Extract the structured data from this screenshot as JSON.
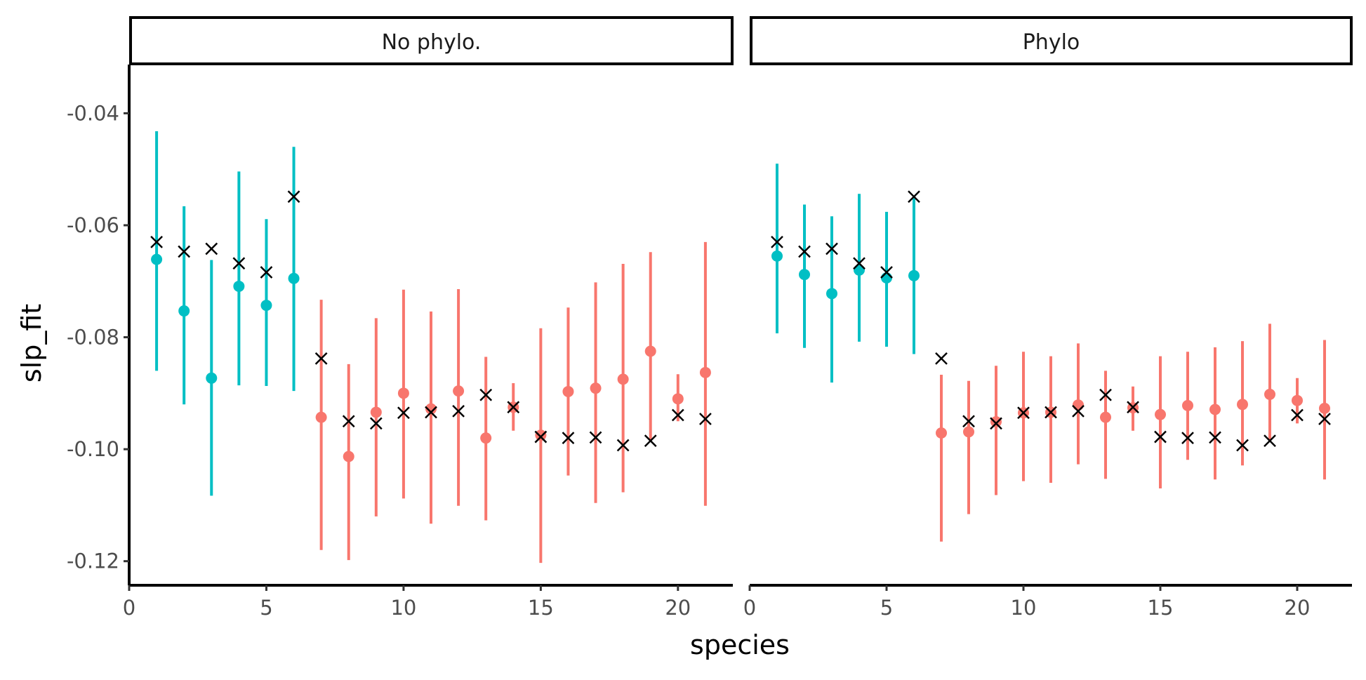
{
  "chart_data": {
    "type": "scatter",
    "xlabel": "species",
    "ylabel": "slp_fit",
    "xlim": [
      0,
      22
    ],
    "ylim": [
      -0.1243,
      -0.0313
    ],
    "x_ticks": [
      0,
      5,
      10,
      15,
      20
    ],
    "y_ticks": [
      -0.04,
      -0.06,
      -0.08,
      -0.1,
      -0.12
    ],
    "x_tick_labels": [
      "0",
      "5",
      "10",
      "15",
      "20"
    ],
    "y_tick_labels": [
      "-0.04",
      "-0.06",
      "-0.08",
      "-0.10",
      "-0.12"
    ],
    "grid": false,
    "legend": "none",
    "colors": {
      "teal": "#00BFC4",
      "salmon": "#F8766D",
      "cross": "#000000"
    },
    "panels": [
      {
        "title": "No phylo.",
        "estimates": [
          {
            "x": 1,
            "y": -0.0661,
            "lo": -0.086,
            "hi": -0.0432,
            "color": "teal"
          },
          {
            "x": 2,
            "y": -0.0753,
            "lo": -0.092,
            "hi": -0.0566,
            "color": "teal"
          },
          {
            "x": 3,
            "y": -0.0873,
            "lo": -0.1083,
            "hi": -0.0662,
            "color": "teal"
          },
          {
            "x": 4,
            "y": -0.0709,
            "lo": -0.0886,
            "hi": -0.0504,
            "color": "teal"
          },
          {
            "x": 5,
            "y": -0.0743,
            "lo": -0.0887,
            "hi": -0.0589,
            "color": "teal"
          },
          {
            "x": 6,
            "y": -0.0695,
            "lo": -0.0896,
            "hi": -0.046,
            "color": "teal"
          },
          {
            "x": 7,
            "y": -0.0943,
            "lo": -0.118,
            "hi": -0.0733,
            "color": "salmon"
          },
          {
            "x": 8,
            "y": -0.1013,
            "lo": -0.1198,
            "hi": -0.0848,
            "color": "salmon"
          },
          {
            "x": 9,
            "y": -0.0934,
            "lo": -0.112,
            "hi": -0.0766,
            "color": "salmon"
          },
          {
            "x": 10,
            "y": -0.09,
            "lo": -0.1088,
            "hi": -0.0715,
            "color": "salmon"
          },
          {
            "x": 11,
            "y": -0.0928,
            "lo": -0.1133,
            "hi": -0.0754,
            "color": "salmon"
          },
          {
            "x": 12,
            "y": -0.0896,
            "lo": -0.1101,
            "hi": -0.0714,
            "color": "salmon"
          },
          {
            "x": 13,
            "y": -0.098,
            "lo": -0.1127,
            "hi": -0.0835,
            "color": "salmon"
          },
          {
            "x": 14,
            "y": -0.0925,
            "lo": -0.0967,
            "hi": -0.0882,
            "color": "salmon"
          },
          {
            "x": 15,
            "y": -0.0975,
            "lo": -0.1203,
            "hi": -0.0784,
            "color": "salmon"
          },
          {
            "x": 16,
            "y": -0.0897,
            "lo": -0.1047,
            "hi": -0.0747,
            "color": "salmon"
          },
          {
            "x": 17,
            "y": -0.0891,
            "lo": -0.1096,
            "hi": -0.0702,
            "color": "salmon"
          },
          {
            "x": 18,
            "y": -0.0875,
            "lo": -0.1077,
            "hi": -0.0669,
            "color": "salmon"
          },
          {
            "x": 19,
            "y": -0.0825,
            "lo": -0.0985,
            "hi": -0.0648,
            "color": "salmon"
          },
          {
            "x": 20,
            "y": -0.091,
            "lo": -0.095,
            "hi": -0.0866,
            "color": "salmon"
          },
          {
            "x": 21,
            "y": -0.0863,
            "lo": -0.1101,
            "hi": -0.063,
            "color": "salmon"
          }
        ],
        "true_values": [
          {
            "x": 1,
            "y": -0.063
          },
          {
            "x": 2,
            "y": -0.0647
          },
          {
            "x": 3,
            "y": -0.0642
          },
          {
            "x": 4,
            "y": -0.0668
          },
          {
            "x": 5,
            "y": -0.0684
          },
          {
            "x": 6,
            "y": -0.0549
          },
          {
            "x": 7,
            "y": -0.0838
          },
          {
            "x": 8,
            "y": -0.095
          },
          {
            "x": 9,
            "y": -0.0954
          },
          {
            "x": 10,
            "y": -0.0935
          },
          {
            "x": 11,
            "y": -0.0934
          },
          {
            "x": 12,
            "y": -0.0932
          },
          {
            "x": 13,
            "y": -0.0903
          },
          {
            "x": 14,
            "y": -0.0925
          },
          {
            "x": 15,
            "y": -0.0978
          },
          {
            "x": 16,
            "y": -0.098
          },
          {
            "x": 17,
            "y": -0.0979
          },
          {
            "x": 18,
            "y": -0.0993
          },
          {
            "x": 19,
            "y": -0.0985
          },
          {
            "x": 20,
            "y": -0.0939
          },
          {
            "x": 21,
            "y": -0.0946
          }
        ]
      },
      {
        "title": "Phylo",
        "estimates": [
          {
            "x": 1,
            "y": -0.0655,
            "lo": -0.0793,
            "hi": -0.049,
            "color": "teal"
          },
          {
            "x": 2,
            "y": -0.0688,
            "lo": -0.0819,
            "hi": -0.0563,
            "color": "teal"
          },
          {
            "x": 3,
            "y": -0.0722,
            "lo": -0.0881,
            "hi": -0.0584,
            "color": "teal"
          },
          {
            "x": 4,
            "y": -0.068,
            "lo": -0.0808,
            "hi": -0.0544,
            "color": "teal"
          },
          {
            "x": 5,
            "y": -0.0694,
            "lo": -0.0817,
            "hi": -0.0576,
            "color": "teal"
          },
          {
            "x": 6,
            "y": -0.069,
            "lo": -0.083,
            "hi": -0.0552,
            "color": "teal"
          },
          {
            "x": 7,
            "y": -0.0971,
            "lo": -0.1165,
            "hi": -0.0867,
            "color": "salmon"
          },
          {
            "x": 8,
            "y": -0.0969,
            "lo": -0.1116,
            "hi": -0.0878,
            "color": "salmon"
          },
          {
            "x": 9,
            "y": -0.0951,
            "lo": -0.1082,
            "hi": -0.0851,
            "color": "salmon"
          },
          {
            "x": 10,
            "y": -0.0935,
            "lo": -0.1057,
            "hi": -0.0826,
            "color": "salmon"
          },
          {
            "x": 11,
            "y": -0.0934,
            "lo": -0.106,
            "hi": -0.0834,
            "color": "salmon"
          },
          {
            "x": 12,
            "y": -0.0921,
            "lo": -0.1027,
            "hi": -0.0811,
            "color": "salmon"
          },
          {
            "x": 13,
            "y": -0.0943,
            "lo": -0.1053,
            "hi": -0.086,
            "color": "salmon"
          },
          {
            "x": 14,
            "y": -0.0926,
            "lo": -0.0967,
            "hi": -0.0888,
            "color": "salmon"
          },
          {
            "x": 15,
            "y": -0.0938,
            "lo": -0.107,
            "hi": -0.0834,
            "color": "salmon"
          },
          {
            "x": 16,
            "y": -0.0922,
            "lo": -0.1019,
            "hi": -0.0826,
            "color": "salmon"
          },
          {
            "x": 17,
            "y": -0.0929,
            "lo": -0.1054,
            "hi": -0.0818,
            "color": "salmon"
          },
          {
            "x": 18,
            "y": -0.092,
            "lo": -0.1029,
            "hi": -0.0807,
            "color": "salmon"
          },
          {
            "x": 19,
            "y": -0.0902,
            "lo": -0.0985,
            "hi": -0.0776,
            "color": "salmon"
          },
          {
            "x": 20,
            "y": -0.0913,
            "lo": -0.0954,
            "hi": -0.0873,
            "color": "salmon"
          },
          {
            "x": 21,
            "y": -0.0927,
            "lo": -0.1054,
            "hi": -0.0805,
            "color": "salmon"
          }
        ],
        "true_values": [
          {
            "x": 1,
            "y": -0.063
          },
          {
            "x": 2,
            "y": -0.0647
          },
          {
            "x": 3,
            "y": -0.0642
          },
          {
            "x": 4,
            "y": -0.0668
          },
          {
            "x": 5,
            "y": -0.0684
          },
          {
            "x": 6,
            "y": -0.0549
          },
          {
            "x": 7,
            "y": -0.0838
          },
          {
            "x": 8,
            "y": -0.095
          },
          {
            "x": 9,
            "y": -0.0954
          },
          {
            "x": 10,
            "y": -0.0935
          },
          {
            "x": 11,
            "y": -0.0934
          },
          {
            "x": 12,
            "y": -0.0932
          },
          {
            "x": 13,
            "y": -0.0903
          },
          {
            "x": 14,
            "y": -0.0925
          },
          {
            "x": 15,
            "y": -0.0978
          },
          {
            "x": 16,
            "y": -0.098
          },
          {
            "x": 17,
            "y": -0.0979
          },
          {
            "x": 18,
            "y": -0.0993
          },
          {
            "x": 19,
            "y": -0.0985
          },
          {
            "x": 20,
            "y": -0.0939
          },
          {
            "x": 21,
            "y": -0.0946
          }
        ]
      }
    ]
  }
}
